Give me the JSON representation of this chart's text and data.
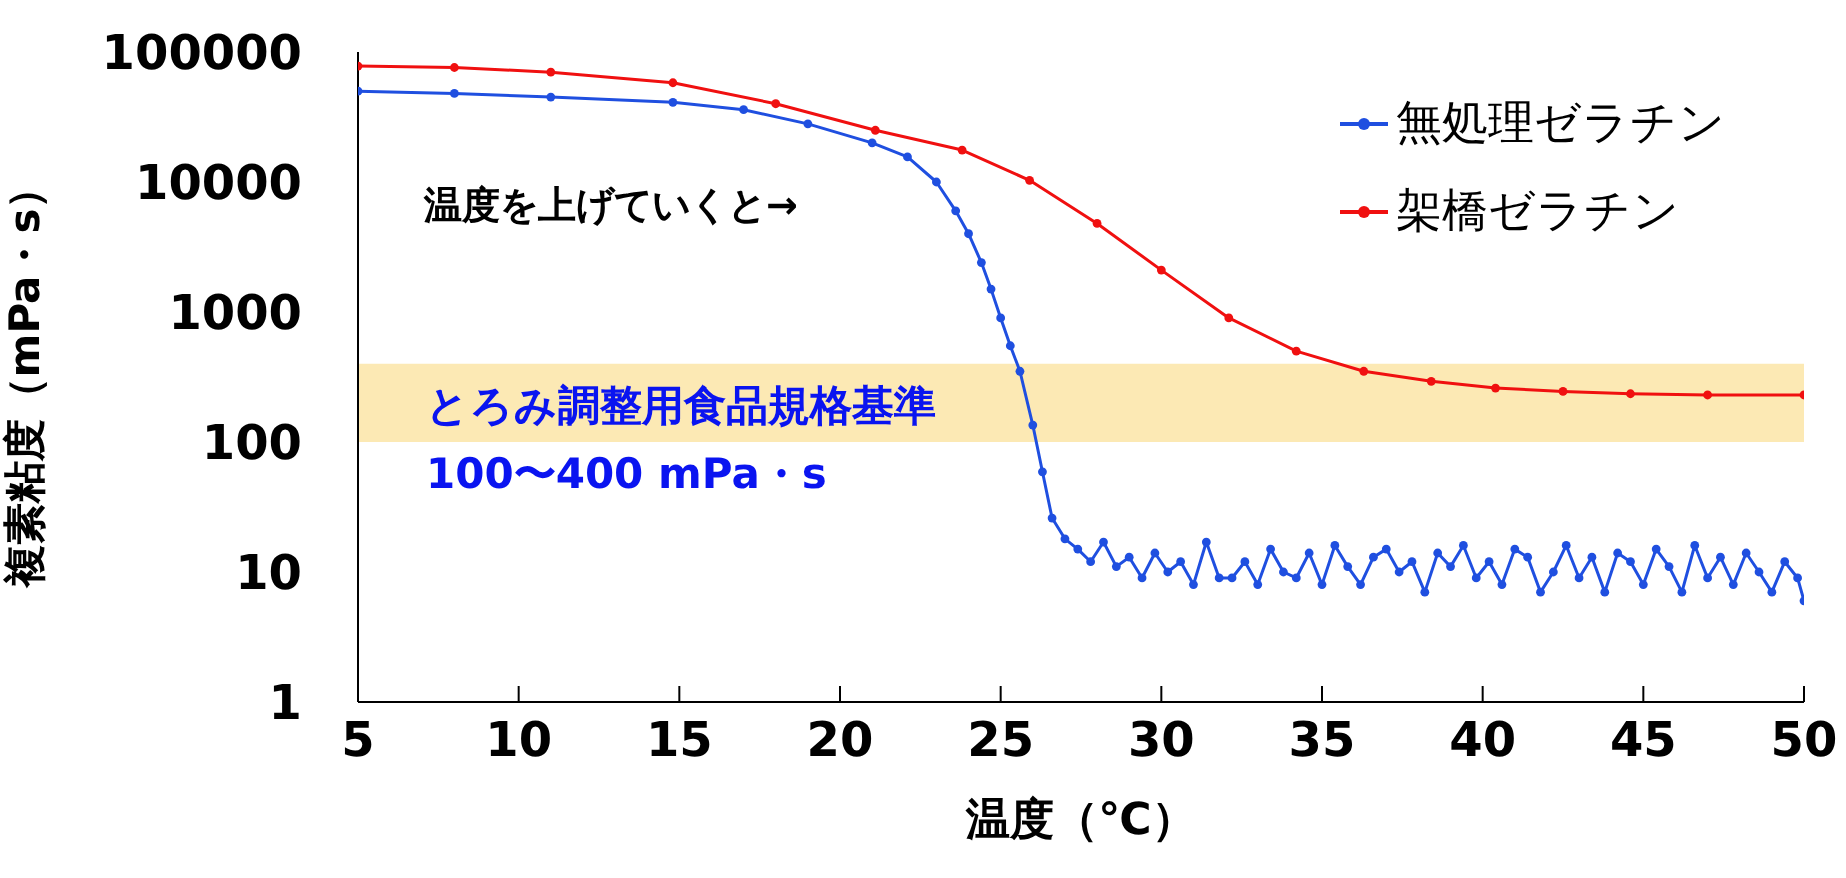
{
  "chart_data": {
    "type": "line",
    "xlabel": "温度（℃）",
    "ylabel": "複素粘度（mPa・s）",
    "log": "y",
    "grid": false,
    "legend": "top right",
    "marker": "circle",
    "line_style": "solid",
    "xlim": [
      5,
      50
    ],
    "xticks": [
      5,
      10,
      15,
      20,
      25,
      30,
      35,
      40,
      45,
      50
    ],
    "ylim": [
      1,
      100000
    ],
    "yticks": [
      1,
      10,
      100,
      1000,
      10000,
      100000
    ],
    "annotations": [
      "温度を上げていくと→"
    ],
    "bands": [
      {
        "axis": "y",
        "from": 100,
        "to": 400,
        "label": "とろみ調整用食品規格基準\n100〜400 mPa・s",
        "color": "#fce9b4"
      }
    ],
    "series": [
      {
        "name": "無処理ゼラチン",
        "color": "#1f4fe0",
        "x": [
          5,
          8,
          11,
          14.8,
          17,
          19,
          21,
          22.1,
          23,
          23.6,
          24,
          24.4,
          24.7,
          25,
          25.3,
          25.6,
          26,
          26.3,
          26.6,
          27,
          27.4,
          27.8,
          28.2,
          28.6,
          29,
          29.4,
          29.8,
          30.2,
          30.6,
          31,
          31.4,
          31.8,
          32.2,
          32.6,
          33,
          33.4,
          33.8,
          34.2,
          34.6,
          35,
          35.4,
          35.8,
          36.2,
          36.6,
          37,
          37.4,
          37.8,
          38.2,
          38.6,
          39,
          39.4,
          39.8,
          40.2,
          40.6,
          41,
          41.4,
          41.8,
          42.2,
          42.6,
          43,
          43.4,
          43.8,
          44.2,
          44.6,
          45,
          45.4,
          45.8,
          46.2,
          46.6,
          47,
          47.4,
          47.8,
          48.2,
          48.6,
          49,
          49.4,
          49.8,
          50
        ],
        "values": [
          50000,
          48000,
          45000,
          41000,
          36000,
          28000,
          20000,
          15600,
          10000,
          6000,
          4000,
          2400,
          1500,
          900,
          550,
          350,
          135,
          59,
          26,
          18,
          15,
          12,
          17,
          11,
          13,
          9,
          14,
          10,
          12,
          8,
          17,
          9,
          9,
          12,
          8,
          15,
          10,
          9,
          14,
          8,
          16,
          11,
          8,
          13,
          15,
          10,
          12,
          7,
          14,
          11,
          16,
          9,
          12,
          8,
          15,
          13,
          7,
          10,
          16,
          9,
          13,
          7,
          14,
          12,
          8,
          15,
          11,
          7,
          16,
          9,
          13,
          8,
          14,
          10,
          7,
          12,
          9,
          6
        ]
      },
      {
        "name": "架橋ゼラチン",
        "color": "#f01010",
        "x": [
          5,
          8,
          11,
          14.8,
          18,
          21.1,
          23.8,
          25.9,
          28,
          30,
          32.1,
          34.2,
          36.3,
          38.4,
          40.4,
          42.5,
          44.6,
          47,
          50
        ],
        "values": [
          78000,
          76000,
          70000,
          58000,
          40000,
          25000,
          17600,
          10300,
          4800,
          2100,
          900,
          500,
          350,
          293,
          260,
          245,
          235,
          230,
          230
        ]
      }
    ]
  }
}
